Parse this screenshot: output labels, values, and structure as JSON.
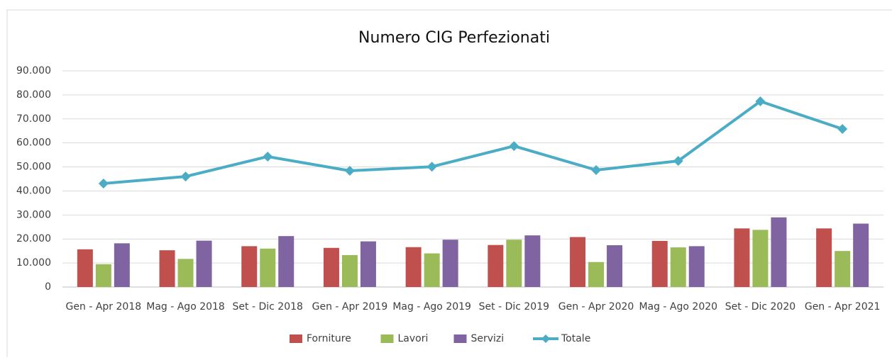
{
  "chart_data": {
    "type": "bar",
    "title": "Numero CIG Perfezionati",
    "categories": [
      "Gen - Apr 2018",
      "Mag - Ago 2018",
      "Set - Dic 2018",
      "Gen - Apr 2019",
      "Mag - Ago 2019",
      "Set - Dic 2019",
      "Gen - Apr 2020",
      "Mag - Ago 2020",
      "Set - Dic 2020",
      "Gen - Apr 2021"
    ],
    "series": [
      {
        "name": "Forniture",
        "type": "bar",
        "color": "#c0504d",
        "values": [
          15700,
          15300,
          17000,
          16300,
          16600,
          17500,
          20800,
          19200,
          24400,
          24400
        ]
      },
      {
        "name": "Lavori",
        "type": "bar",
        "color": "#9bbb59",
        "values": [
          9500,
          11700,
          16000,
          13300,
          14000,
          19700,
          10400,
          16500,
          23800,
          15000
        ]
      },
      {
        "name": "Servizi",
        "type": "bar",
        "color": "#8064a2",
        "values": [
          18200,
          19300,
          21200,
          19000,
          19700,
          21500,
          17400,
          17000,
          29000,
          26400
        ]
      },
      {
        "name": "Totale",
        "type": "line",
        "color": "#4bacc6",
        "values": [
          43100,
          46000,
          54300,
          48400,
          50100,
          58700,
          48700,
          52500,
          77300,
          65800
        ]
      }
    ],
    "ylim": [
      0,
      90000
    ],
    "yticks": [
      0,
      {
        "value": 10000,
        "label": "10.000"
      },
      {
        "value": 20000,
        "label": "20.000"
      },
      {
        "value": 30000,
        "label": "30.000"
      },
      {
        "value": 40000,
        "label": "40.000"
      },
      {
        "value": 50000,
        "label": "50.000"
      },
      {
        "value": 60000,
        "label": "60.000"
      },
      {
        "value": 70000,
        "label": "70.000"
      },
      {
        "value": 80000,
        "label": "80.000"
      },
      {
        "value": 90000,
        "label": "90.000"
      }
    ],
    "grid": true,
    "legend": "bottom"
  }
}
